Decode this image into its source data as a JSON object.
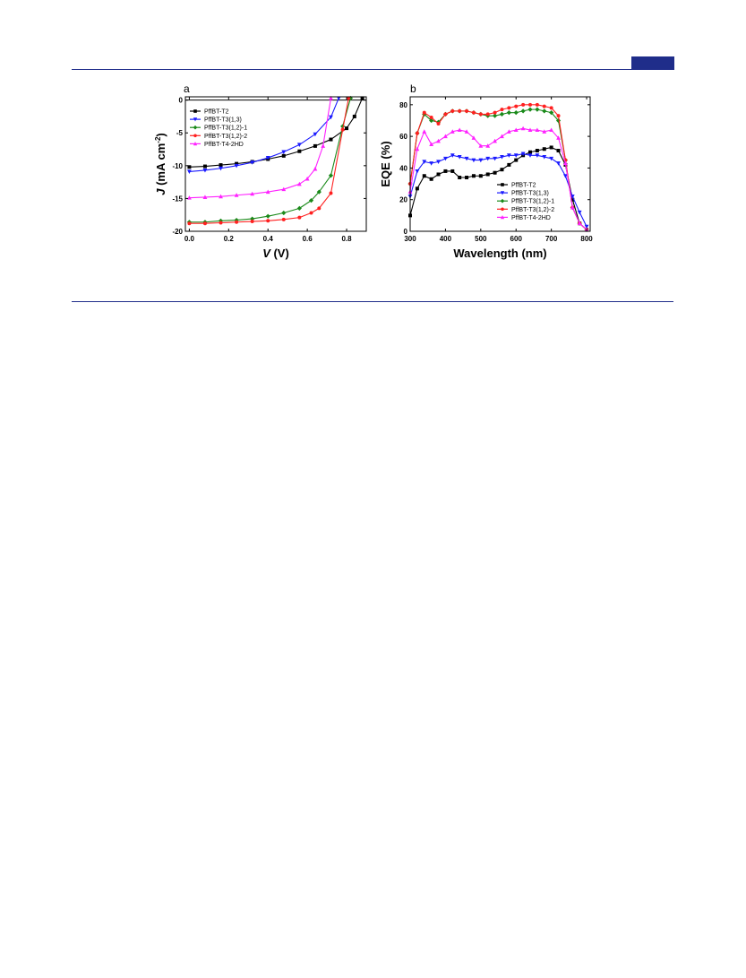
{
  "page": {
    "accent": "#1f2d8a"
  },
  "chart_data": [
    {
      "panel_label": "a",
      "type": "line",
      "xlabel_italic": "V",
      "xlabel_rest": " (V)",
      "ylabel_italic": "J",
      "ylabel_rest": " (mA cm",
      "ylabel_sup": "-2",
      "ylabel_close": ")",
      "xlim": [
        -0.02,
        0.9
      ],
      "ylim": [
        -20,
        0.5
      ],
      "xticks": [
        "0.0",
        "0.2",
        "0.4",
        "0.6",
        "0.8"
      ],
      "yticks": [
        "0",
        "-5",
        "-10",
        "-15",
        "-20"
      ],
      "grid": false,
      "legend_position": "top-left",
      "series": [
        {
          "name": "PffBT-T2",
          "color": "#000000",
          "marker": "square",
          "x": [
            0.0,
            0.08,
            0.16,
            0.24,
            0.32,
            0.4,
            0.48,
            0.56,
            0.64,
            0.72,
            0.8,
            0.84,
            0.88
          ],
          "y": [
            -10.2,
            -10.1,
            -9.9,
            -9.7,
            -9.4,
            -9.0,
            -8.5,
            -7.8,
            -7.0,
            -6.0,
            -4.3,
            -2.5,
            0.3
          ]
        },
        {
          "name": "PffBT-T3(1,3)",
          "color": "#1a1aff",
          "marker": "triangle-down",
          "x": [
            0.0,
            0.08,
            0.16,
            0.24,
            0.32,
            0.4,
            0.48,
            0.56,
            0.64,
            0.72,
            0.76
          ],
          "y": [
            -10.9,
            -10.7,
            -10.4,
            -10.0,
            -9.5,
            -8.8,
            -7.9,
            -6.8,
            -5.2,
            -2.6,
            0.3
          ]
        },
        {
          "name": "PffBT-T3(1,2)-1",
          "color": "#1a8a1a",
          "marker": "diamond",
          "x": [
            0.0,
            0.08,
            0.16,
            0.24,
            0.32,
            0.4,
            0.48,
            0.56,
            0.62,
            0.66,
            0.72,
            0.78,
            0.82
          ],
          "y": [
            -18.6,
            -18.6,
            -18.4,
            -18.3,
            -18.1,
            -17.7,
            -17.2,
            -16.5,
            -15.3,
            -14.0,
            -11.5,
            -4.0,
            0.3
          ]
        },
        {
          "name": "PffBT-T3(1,2)-2",
          "color": "#ff2020",
          "marker": "circle",
          "x": [
            0.0,
            0.08,
            0.16,
            0.24,
            0.32,
            0.4,
            0.48,
            0.56,
            0.62,
            0.66,
            0.72,
            0.78,
            0.81
          ],
          "y": [
            -18.8,
            -18.8,
            -18.7,
            -18.6,
            -18.5,
            -18.4,
            -18.2,
            -17.9,
            -17.2,
            -16.5,
            -14.2,
            -4.5,
            0.3
          ]
        },
        {
          "name": "PffBT-T4-2HD",
          "color": "#ff22ff",
          "marker": "triangle-up",
          "x": [
            0.0,
            0.08,
            0.16,
            0.24,
            0.32,
            0.4,
            0.48,
            0.56,
            0.6,
            0.64,
            0.68,
            0.72
          ],
          "y": [
            -14.9,
            -14.8,
            -14.7,
            -14.5,
            -14.3,
            -14.0,
            -13.6,
            -12.8,
            -12.0,
            -10.5,
            -7.0,
            0.3
          ]
        }
      ]
    },
    {
      "panel_label": "b",
      "type": "line",
      "xlabel": "Wavelength (nm)",
      "ylabel": "EQE (%)",
      "xlim": [
        300,
        810
      ],
      "ylim": [
        0,
        85
      ],
      "xticks": [
        "300",
        "400",
        "500",
        "600",
        "700",
        "800"
      ],
      "yticks": [
        "0",
        "20",
        "40",
        "60",
        "80"
      ],
      "grid": false,
      "legend_position": "bottom-right",
      "series": [
        {
          "name": "PffBT-T2",
          "color": "#000000",
          "marker": "square",
          "x": [
            300,
            320,
            340,
            360,
            380,
            400,
            420,
            440,
            460,
            480,
            500,
            520,
            540,
            560,
            580,
            600,
            620,
            640,
            660,
            680,
            700,
            720,
            740,
            760,
            780,
            800
          ],
          "y": [
            10,
            27,
            35,
            33,
            36,
            38,
            38,
            34,
            34,
            35,
            35,
            36,
            37,
            39,
            42,
            45,
            48,
            50,
            51,
            52,
            53,
            51,
            42,
            20,
            5,
            1
          ]
        },
        {
          "name": "PffBT-T3(1,3)",
          "color": "#1a1aff",
          "marker": "triangle-down",
          "x": [
            300,
            320,
            340,
            360,
            380,
            400,
            420,
            440,
            460,
            480,
            500,
            520,
            540,
            560,
            580,
            600,
            620,
            640,
            660,
            680,
            700,
            720,
            740,
            760,
            780,
            800
          ],
          "y": [
            22,
            38,
            44,
            43,
            44,
            46,
            48,
            47,
            46,
            45,
            45,
            46,
            46,
            47,
            48,
            48,
            49,
            48,
            48,
            47,
            46,
            43,
            35,
            22,
            12,
            3
          ]
        },
        {
          "name": "PffBT-T3(1,2)-1",
          "color": "#1a8a1a",
          "marker": "diamond",
          "x": [
            300,
            320,
            340,
            360,
            380,
            400,
            420,
            440,
            460,
            480,
            500,
            520,
            540,
            560,
            580,
            600,
            620,
            640,
            660,
            680,
            700,
            720,
            740,
            760,
            780,
            800
          ],
          "y": [
            30,
            62,
            74,
            70,
            69,
            74,
            76,
            76,
            76,
            75,
            74,
            73,
            73,
            74,
            75,
            75,
            76,
            77,
            77,
            76,
            75,
            70,
            45,
            15,
            5,
            1
          ]
        },
        {
          "name": "PffBT-T3(1,2)-2",
          "color": "#ff2020",
          "marker": "circle",
          "x": [
            300,
            320,
            340,
            360,
            380,
            400,
            420,
            440,
            460,
            480,
            500,
            520,
            540,
            560,
            580,
            600,
            620,
            640,
            660,
            680,
            700,
            720,
            740,
            760,
            780,
            800
          ],
          "y": [
            30,
            62,
            75,
            72,
            68,
            74,
            76,
            76,
            76,
            75,
            74,
            74,
            75,
            77,
            78,
            79,
            80,
            80,
            80,
            79,
            78,
            73,
            45,
            15,
            5,
            1
          ]
        },
        {
          "name": "PffBT-T4-2HD",
          "color": "#ff22ff",
          "marker": "triangle-up",
          "x": [
            300,
            320,
            340,
            360,
            380,
            400,
            420,
            440,
            460,
            480,
            500,
            520,
            540,
            560,
            580,
            600,
            620,
            640,
            660,
            680,
            700,
            720,
            740,
            760,
            780,
            800
          ],
          "y": [
            25,
            52,
            63,
            55,
            57,
            60,
            63,
            64,
            63,
            59,
            54,
            54,
            57,
            60,
            63,
            64,
            65,
            64,
            64,
            63,
            64,
            59,
            43,
            15,
            5,
            1
          ]
        }
      ]
    }
  ]
}
